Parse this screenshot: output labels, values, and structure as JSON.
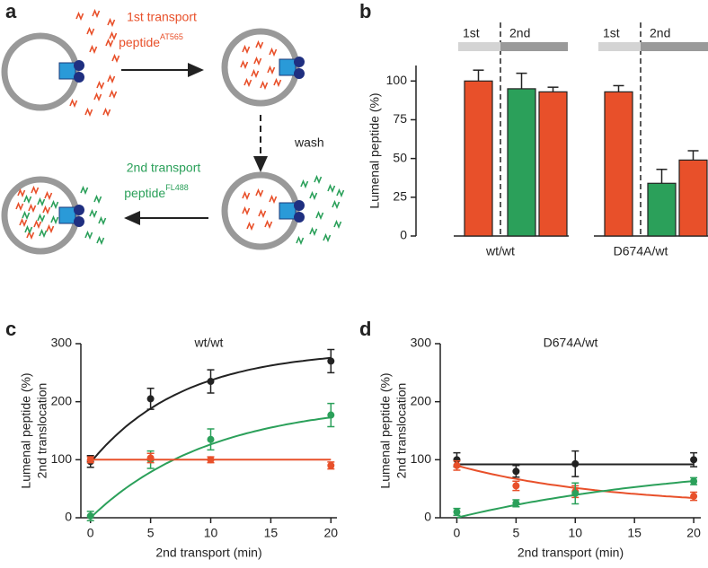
{
  "diagram": {
    "label": "a",
    "step1": "1st transport",
    "peptide1": "peptide",
    "dye1": "AT565",
    "wash": "wash",
    "step2": "2nd transport",
    "peptide2": "peptide",
    "dye2": "FL488"
  },
  "chart_data": [
    {
      "type": "grouped-bar",
      "label": "b",
      "y_label": "Lumenal peptide (%)",
      "phase_labels": [
        "1st",
        "2nd"
      ],
      "phase_colors": [
        "#d4d4d4",
        "#9a9a9a"
      ],
      "ylim": [
        0,
        110
      ],
      "yticks": [
        0,
        25,
        50,
        75,
        100
      ],
      "groups": [
        {
          "name": "wt/wt",
          "values": [
            100,
            95,
            93
          ],
          "errors": [
            7,
            10,
            3
          ],
          "colors": [
            "#e8502a",
            "#2ba05a",
            "#e8502a"
          ]
        },
        {
          "name": "D674A/wt",
          "values": [
            93,
            34,
            49
          ],
          "errors": [
            4,
            9,
            6
          ],
          "colors": [
            "#e8502a",
            "#2ba05a",
            "#e8502a"
          ]
        }
      ]
    },
    {
      "type": "scatter-fit",
      "label": "c",
      "title": "wt/wt",
      "x_label": "2nd transport (min)",
      "y_label": [
        "Lumenal peptide (%)",
        "2nd translocation"
      ],
      "xlim": [
        -0.8,
        20.5
      ],
      "xticks": [
        0,
        5,
        10,
        15,
        20
      ],
      "ylim": [
        0,
        300
      ],
      "yticks": [
        0,
        100,
        200,
        300
      ],
      "x": [
        0,
        5,
        10,
        20
      ],
      "series": [
        {
          "color": "#222222",
          "values": [
            97,
            205,
            235,
            270
          ],
          "errors": [
            10,
            18,
            20,
            20
          ],
          "fit": {
            "a": 95,
            "b": 290,
            "k": 0.13
          }
        },
        {
          "color": "#2ba05a",
          "values": [
            3,
            100,
            135,
            177
          ],
          "errors": [
            8,
            15,
            18,
            20
          ],
          "fit": {
            "a": 0,
            "b": 200,
            "k": 0.1
          }
        },
        {
          "color": "#e8502a",
          "values": [
            100,
            103,
            100,
            90
          ],
          "errors": [
            5,
            8,
            5,
            6
          ],
          "fit": {
            "a": 100,
            "b": 100,
            "k": 0
          }
        }
      ]
    },
    {
      "type": "scatter-fit",
      "label": "d",
      "title": "D674A/wt",
      "x_label": "2nd transport (min)",
      "y_label": [
        "Lumenal peptide (%)",
        "2nd translocation"
      ],
      "xlim": [
        -1.4,
        20.6
      ],
      "xticks": [
        0,
        5,
        10,
        15,
        20
      ],
      "ylim": [
        0,
        300
      ],
      "yticks": [
        0,
        100,
        200,
        300
      ],
      "x": [
        0,
        5,
        10,
        20
      ],
      "series": [
        {
          "color": "#222222",
          "values": [
            100,
            80,
            93,
            100
          ],
          "errors": [
            12,
            10,
            22,
            12
          ],
          "fit": {
            "a": 92,
            "b": 92,
            "k": 0
          }
        },
        {
          "color": "#e8502a",
          "values": [
            90,
            55,
            45,
            37
          ],
          "errors": [
            8,
            8,
            10,
            7
          ],
          "fit": {
            "a": 90,
            "b": 20,
            "k": 0.08
          }
        },
        {
          "color": "#2ba05a",
          "values": [
            10,
            25,
            42,
            63
          ],
          "errors": [
            6,
            6,
            18,
            6
          ],
          "fit": {
            "a": 0,
            "b": 100,
            "k": 0.05
          }
        }
      ]
    }
  ]
}
